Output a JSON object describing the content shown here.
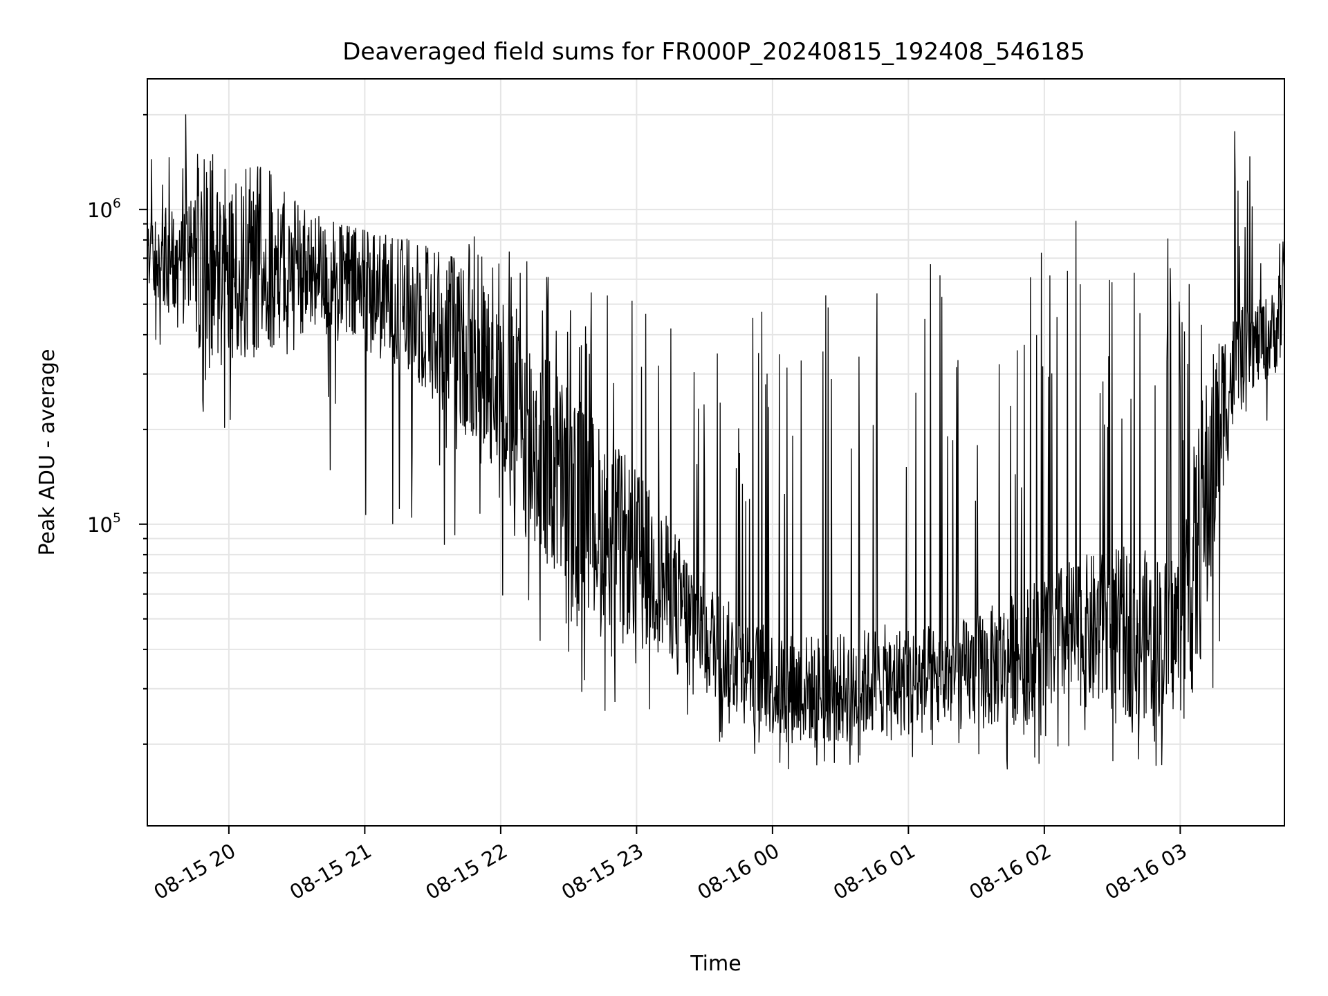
{
  "chart_data": {
    "type": "line",
    "title": "Deaveraged field sums for FR000P_20240815_192408_546185",
    "xlabel": "Time",
    "ylabel": "Peak ADU - average",
    "yscale": "log",
    "ylim": [
      11000,
      2600000
    ],
    "xlim": [
      "2024-08-15 19:24",
      "2024-08-16 03:46"
    ],
    "grid": true,
    "line_color": "#000000",
    "grid_color": "#e5e5e5",
    "x_ticks": [
      {
        "label": "08-15 20",
        "time": "2024-08-15 20:00"
      },
      {
        "label": "08-15 21",
        "time": "2024-08-15 21:00"
      },
      {
        "label": "08-15 22",
        "time": "2024-08-15 22:00"
      },
      {
        "label": "08-15 23",
        "time": "2024-08-15 23:00"
      },
      {
        "label": "08-16 00",
        "time": "2024-08-16 00:00"
      },
      {
        "label": "08-16 01",
        "time": "2024-08-16 01:00"
      },
      {
        "label": "08-16 02",
        "time": "2024-08-16 02:00"
      },
      {
        "label": "08-16 03",
        "time": "2024-08-16 03:00"
      }
    ],
    "y_ticks": [
      {
        "base": "10",
        "exp": "5",
        "value": 100000
      },
      {
        "base": "10",
        "exp": "6",
        "value": 1000000
      }
    ],
    "series": [
      {
        "x": [
          "2024-08-15 19:24",
          "2024-08-15 19:30",
          "2024-08-15 19:36",
          "2024-08-15 19:42",
          "2024-08-15 19:48",
          "2024-08-15 19:54",
          "2024-08-15 20:00",
          "2024-08-15 20:06",
          "2024-08-15 20:12",
          "2024-08-15 20:18",
          "2024-08-15 20:24",
          "2024-08-15 20:30",
          "2024-08-15 20:36",
          "2024-08-15 20:42",
          "2024-08-15 20:48",
          "2024-08-15 20:54",
          "2024-08-15 21:00",
          "2024-08-15 21:06",
          "2024-08-15 21:12",
          "2024-08-15 21:18",
          "2024-08-15 21:24",
          "2024-08-15 21:30",
          "2024-08-15 21:36",
          "2024-08-15 21:42",
          "2024-08-15 21:48",
          "2024-08-15 21:54",
          "2024-08-15 22:00",
          "2024-08-15 22:06",
          "2024-08-15 22:12",
          "2024-08-15 22:18",
          "2024-08-15 22:24",
          "2024-08-15 22:30",
          "2024-08-15 22:36",
          "2024-08-15 22:42",
          "2024-08-15 22:48",
          "2024-08-15 22:54",
          "2024-08-15 23:00",
          "2024-08-15 23:06",
          "2024-08-15 23:12",
          "2024-08-15 23:18",
          "2024-08-15 23:24",
          "2024-08-15 23:30",
          "2024-08-15 23:36",
          "2024-08-15 23:42",
          "2024-08-15 23:48",
          "2024-08-15 23:54",
          "2024-08-16 00:00",
          "2024-08-16 00:06",
          "2024-08-16 00:12",
          "2024-08-16 00:18",
          "2024-08-16 00:24",
          "2024-08-16 00:30",
          "2024-08-16 00:36",
          "2024-08-16 00:42",
          "2024-08-16 00:48",
          "2024-08-16 00:54",
          "2024-08-16 01:00",
          "2024-08-16 01:06",
          "2024-08-16 01:12",
          "2024-08-16 01:18",
          "2024-08-16 01:24",
          "2024-08-16 01:30",
          "2024-08-16 01:36",
          "2024-08-16 01:42",
          "2024-08-16 01:48",
          "2024-08-16 01:54",
          "2024-08-16 02:00",
          "2024-08-16 02:06",
          "2024-08-16 02:12",
          "2024-08-16 02:18",
          "2024-08-16 02:24",
          "2024-08-16 02:30",
          "2024-08-16 02:36",
          "2024-08-16 02:42",
          "2024-08-16 02:48",
          "2024-08-16 02:54",
          "2024-08-16 03:00",
          "2024-08-16 03:06",
          "2024-08-16 03:12",
          "2024-08-16 03:18",
          "2024-08-16 03:24",
          "2024-08-16 03:30",
          "2024-08-16 03:36",
          "2024-08-16 03:42",
          "2024-08-16 03:46"
        ],
        "low": [
          560000,
          490000,
          430000,
          380000,
          320000,
          280000,
          300000,
          320000,
          340000,
          360000,
          380000,
          400000,
          390000,
          380000,
          370000,
          360000,
          350000,
          330000,
          310000,
          290000,
          270000,
          240000,
          220000,
          200000,
          180000,
          160000,
          140000,
          110000,
          85000,
          70000,
          62000,
          58000,
          54000,
          50000,
          47000,
          44000,
          42000,
          40000,
          38000,
          36000,
          33000,
          30000,
          27000,
          25000,
          23000,
          22000,
          21000,
          20000,
          20000,
          20000,
          20000,
          20000,
          20000,
          21000,
          21000,
          21000,
          21000,
          21000,
          21000,
          22000,
          22000,
          22000,
          22000,
          23000,
          23000,
          24000,
          25000,
          26000,
          26000,
          26000,
          25000,
          25000,
          24000,
          24000,
          24000,
          24000,
          25000,
          28000,
          45000,
          120000,
          200000,
          260000,
          280000,
          300000,
          330000
        ],
        "high": [
          900000,
          1000000,
          1050000,
          1100000,
          1150000,
          1200000,
          1250000,
          1200000,
          1150000,
          1100000,
          1050000,
          1000000,
          950000,
          920000,
          900000,
          880000,
          860000,
          850000,
          840000,
          820000,
          790000,
          760000,
          720000,
          680000,
          640000,
          600000,
          560000,
          500000,
          440000,
          380000,
          330000,
          290000,
          250000,
          220000,
          190000,
          170000,
          150000,
          130000,
          110000,
          95000,
          80000,
          70000,
          62000,
          56000,
          52000,
          49000,
          47000,
          46000,
          45000,
          45000,
          45000,
          45000,
          46000,
          47000,
          48000,
          48000,
          48000,
          48000,
          48000,
          49000,
          50000,
          52000,
          55000,
          58000,
          62000,
          66000,
          70000,
          74000,
          78000,
          80000,
          82000,
          84000,
          85000,
          84000,
          82000,
          80000,
          90000,
          180000,
          320000,
          420000,
          480000,
          500000,
          520000,
          560000,
          900000
        ],
        "spike_max": [
          1700000,
          1700000,
          1800000,
          2200000,
          1500000,
          1600000,
          1500000,
          1500000,
          1400000,
          1400000,
          1200000,
          1100000,
          1000000,
          1000000,
          900000,
          880000,
          860000,
          800000,
          780000,
          760000,
          760000,
          740000,
          720000,
          700000,
          900000,
          850000,
          840000,
          700000,
          720000,
          800000,
          620000,
          600000,
          580000,
          560000,
          560000,
          540000,
          520000,
          500000,
          480000,
          460000,
          600000,
          420000,
          700000,
          420000,
          420000,
          600000,
          900000,
          420000,
          700000,
          420000,
          840000,
          420000,
          420000,
          1150000,
          560000,
          700000,
          560000,
          420000,
          980000,
          420000,
          400000,
          560000,
          980000,
          400000,
          560000,
          980000,
          880000,
          560000,
          980000,
          880000,
          560000,
          980000,
          880000,
          560000,
          980000,
          880000,
          560000,
          980000,
          1100000,
          1300000,
          1900000,
          1600000,
          900000,
          680000,
          960000
        ],
        "spike_min": [
          450000,
          320000,
          200000,
          160000,
          190000,
          200000,
          150000,
          180000,
          130000,
          100000,
          70000,
          180000,
          160000,
          120000,
          110000,
          52000,
          65000,
          90000,
          100000,
          95000,
          80000,
          120000,
          58000,
          50000,
          70000,
          62000,
          55000,
          48000,
          42000,
          38000,
          22000,
          32000,
          28000,
          26000,
          25000,
          25000,
          25000,
          24000,
          26000,
          24000,
          22000,
          20000,
          20000,
          18000,
          18000,
          17000,
          16500,
          16000,
          15500,
          15500,
          15000,
          16000,
          16500,
          17000,
          17000,
          17500,
          17000,
          17000,
          15000,
          15000,
          16000,
          17000,
          17000,
          16500,
          16000,
          16000,
          17000,
          17000,
          17000,
          18000,
          18000,
          17500,
          17000,
          17000,
          17000,
          17000,
          18000,
          18000,
          18500,
          20000,
          45000,
          110000,
          130000,
          170000,
          250000
        ]
      }
    ]
  }
}
